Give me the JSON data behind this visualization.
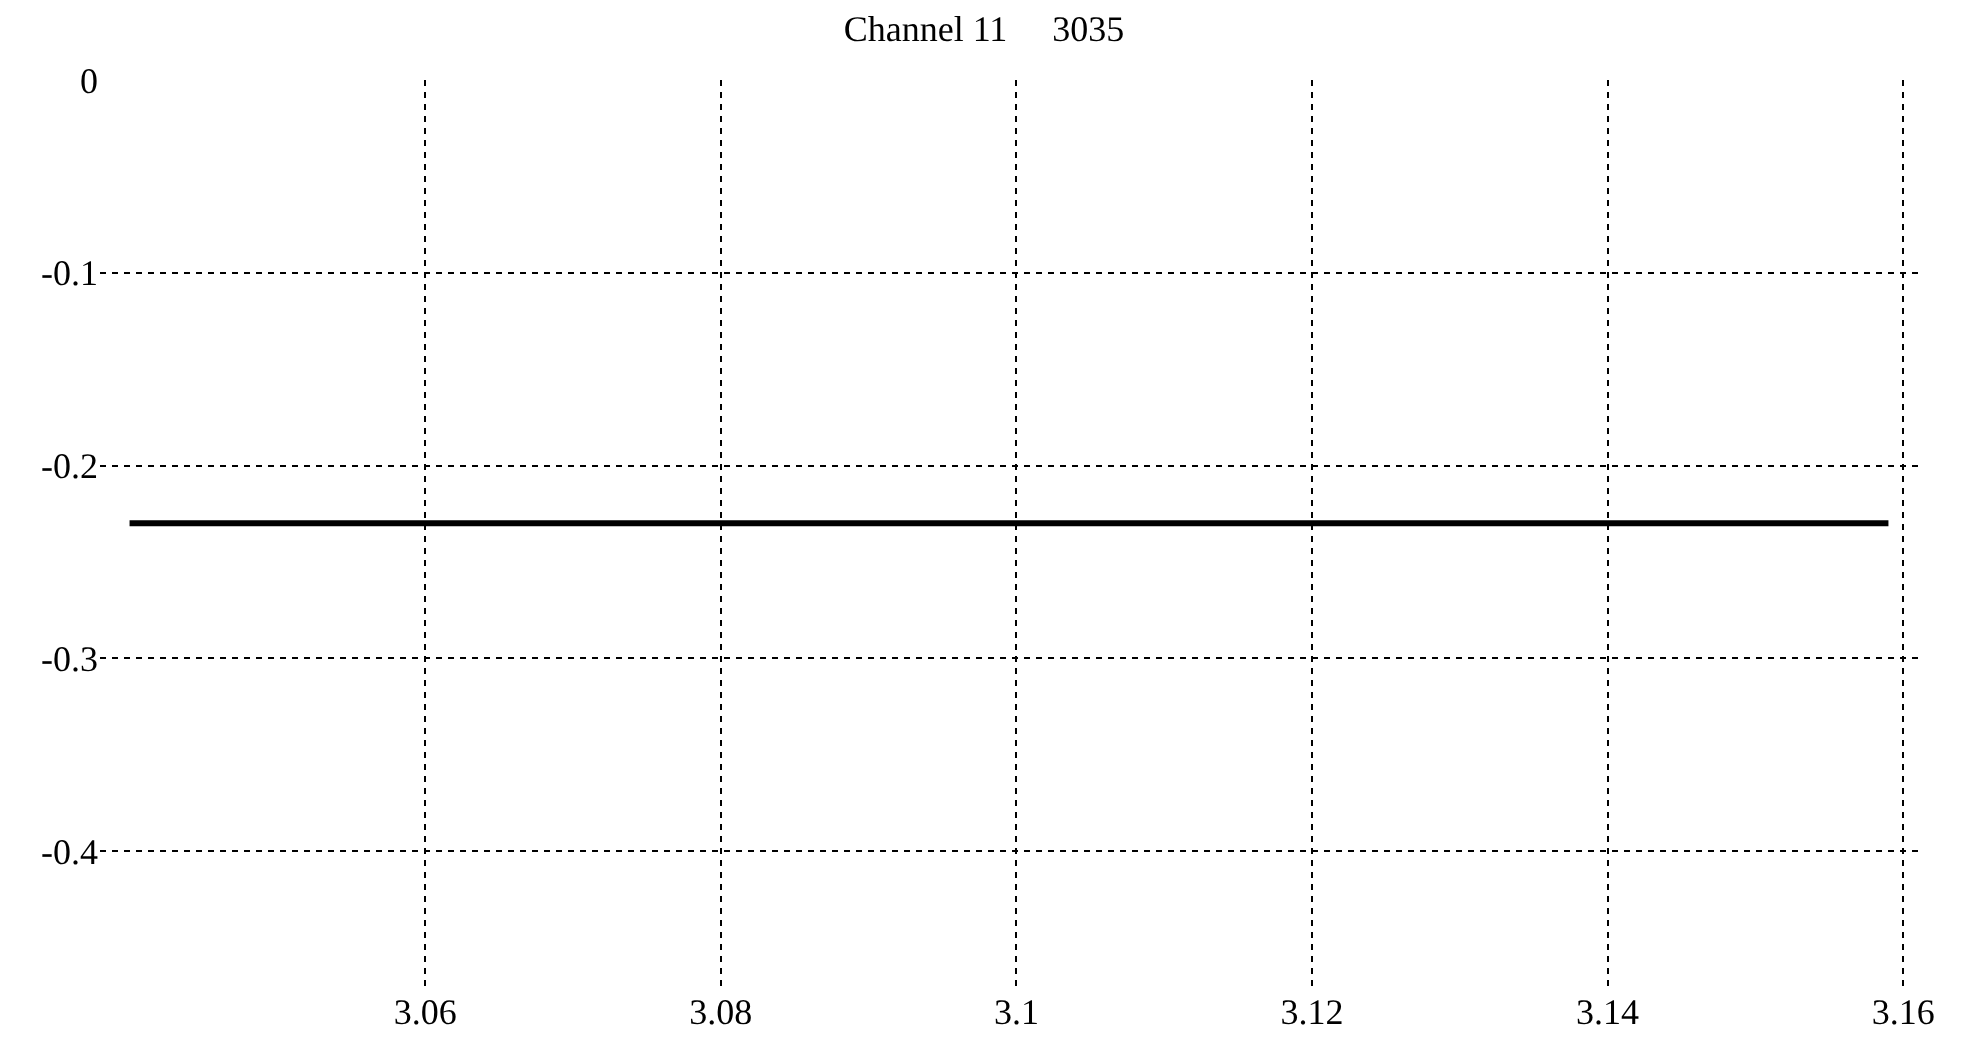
{
  "chart_data": {
    "type": "line",
    "title": "Channel 11     3035",
    "x": [
      3.04,
      3.159
    ],
    "series": [
      {
        "color": "#000000",
        "values": [
          -0.23,
          -0.23
        ]
      }
    ],
    "xlim": [
      3.038,
      3.161
    ],
    "xticks": [
      3.06,
      3.08,
      3.1,
      3.12,
      3.14,
      3.16
    ],
    "ylim": [
      -0.47,
      0
    ],
    "yticks": [
      0,
      -0.1,
      -0.2,
      -0.3,
      -0.4
    ],
    "grid": true,
    "marker": "none",
    "line_style": "solid"
  }
}
